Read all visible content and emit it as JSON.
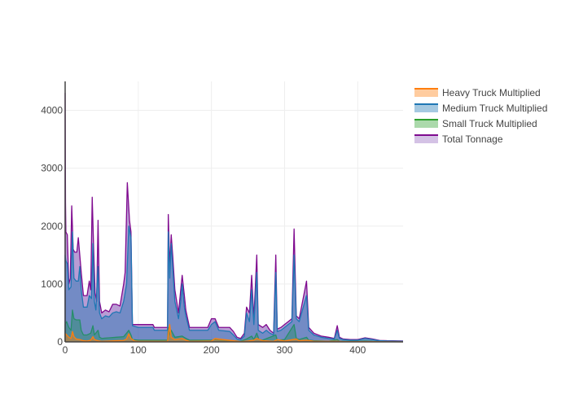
{
  "chart_data": {
    "type": "area",
    "title": "",
    "xlabel": "",
    "ylabel": "",
    "xlim": [
      0,
      462
    ],
    "ylim": [
      0,
      4500
    ],
    "x_ticks": [
      0,
      100,
      200,
      300,
      400
    ],
    "y_ticks": [
      0,
      1000,
      2000,
      3000,
      4000
    ],
    "grid": true,
    "legend_position": "top-right",
    "series": [
      {
        "name": "Heavy Truck Multiplied",
        "color": "#ff7f0e",
        "points": [
          [
            0,
            0
          ],
          [
            0,
            150
          ],
          [
            2,
            120
          ],
          [
            5,
            80
          ],
          [
            8,
            60
          ],
          [
            10,
            180
          ],
          [
            12,
            90
          ],
          [
            15,
            50
          ],
          [
            20,
            40
          ],
          [
            25,
            20
          ],
          [
            30,
            15
          ],
          [
            35,
            30
          ],
          [
            38,
            90
          ],
          [
            40,
            40
          ],
          [
            45,
            20
          ],
          [
            50,
            10
          ],
          [
            60,
            15
          ],
          [
            70,
            20
          ],
          [
            80,
            25
          ],
          [
            84,
            50
          ],
          [
            87,
            140
          ],
          [
            90,
            60
          ],
          [
            95,
            15
          ],
          [
            100,
            10
          ],
          [
            140,
            10
          ],
          [
            141,
            150
          ],
          [
            143,
            300
          ],
          [
            145,
            80
          ],
          [
            150,
            40
          ],
          [
            160,
            60
          ],
          [
            165,
            30
          ],
          [
            170,
            10
          ],
          [
            200,
            15
          ],
          [
            205,
            60
          ],
          [
            210,
            50
          ],
          [
            230,
            20
          ],
          [
            240,
            5
          ],
          [
            250,
            15
          ],
          [
            258,
            30
          ],
          [
            262,
            60
          ],
          [
            270,
            20
          ],
          [
            285,
            10
          ],
          [
            290,
            40
          ],
          [
            300,
            15
          ],
          [
            316,
            50
          ],
          [
            320,
            20
          ],
          [
            330,
            30
          ],
          [
            340,
            10
          ],
          [
            372,
            10
          ],
          [
            380,
            5
          ],
          [
            400,
            5
          ],
          [
            420,
            5
          ],
          [
            462,
            0
          ]
        ]
      },
      {
        "name": "Medium Truck Multiplied",
        "color": "#1f77b4",
        "points": [
          [
            0,
            0
          ],
          [
            0,
            1500
          ],
          [
            1,
            1400
          ],
          [
            3,
            1350
          ],
          [
            5,
            900
          ],
          [
            8,
            950
          ],
          [
            10,
            1900
          ],
          [
            12,
            1100
          ],
          [
            15,
            1050
          ],
          [
            18,
            1050
          ],
          [
            20,
            1300
          ],
          [
            22,
            900
          ],
          [
            25,
            600
          ],
          [
            30,
            600
          ],
          [
            33,
            800
          ],
          [
            36,
            750
          ],
          [
            38,
            1700
          ],
          [
            40,
            700
          ],
          [
            42,
            550
          ],
          [
            45,
            1300
          ],
          [
            47,
            500
          ],
          [
            50,
            400
          ],
          [
            55,
            450
          ],
          [
            60,
            430
          ],
          [
            65,
            500
          ],
          [
            70,
            520
          ],
          [
            75,
            500
          ],
          [
            80,
            700
          ],
          [
            84,
            1000
          ],
          [
            87,
            2000
          ],
          [
            90,
            1800
          ],
          [
            92,
            280
          ],
          [
            100,
            250
          ],
          [
            120,
            250
          ],
          [
            122,
            200
          ],
          [
            140,
            200
          ],
          [
            141,
            1900
          ],
          [
            143,
            1100
          ],
          [
            145,
            1700
          ],
          [
            147,
            1300
          ],
          [
            150,
            700
          ],
          [
            155,
            400
          ],
          [
            158,
            700
          ],
          [
            160,
            1000
          ],
          [
            163,
            600
          ],
          [
            165,
            450
          ],
          [
            170,
            200
          ],
          [
            195,
            200
          ],
          [
            200,
            300
          ],
          [
            205,
            350
          ],
          [
            210,
            200
          ],
          [
            225,
            180
          ],
          [
            230,
            120
          ],
          [
            235,
            50
          ],
          [
            240,
            40
          ],
          [
            245,
            100
          ],
          [
            248,
            500
          ],
          [
            252,
            350
          ],
          [
            255,
            900
          ],
          [
            258,
            300
          ],
          [
            262,
            1200
          ],
          [
            264,
            200
          ],
          [
            270,
            150
          ],
          [
            275,
            200
          ],
          [
            280,
            150
          ],
          [
            285,
            120
          ],
          [
            288,
            1200
          ],
          [
            290,
            180
          ],
          [
            295,
            200
          ],
          [
            300,
            250
          ],
          [
            305,
            300
          ],
          [
            310,
            350
          ],
          [
            313,
            1500
          ],
          [
            316,
            400
          ],
          [
            320,
            350
          ],
          [
            330,
            800
          ],
          [
            333,
            200
          ],
          [
            340,
            120
          ],
          [
            350,
            80
          ],
          [
            360,
            60
          ],
          [
            368,
            50
          ],
          [
            372,
            200
          ],
          [
            375,
            60
          ],
          [
            380,
            40
          ],
          [
            390,
            30
          ],
          [
            400,
            30
          ],
          [
            410,
            60
          ],
          [
            420,
            40
          ],
          [
            430,
            20
          ],
          [
            440,
            15
          ],
          [
            462,
            10
          ]
        ]
      },
      {
        "name": "Small Truck Multiplied",
        "color": "#2ca02c",
        "points": [
          [
            0,
            0
          ],
          [
            0,
            300
          ],
          [
            2,
            350
          ],
          [
            5,
            250
          ],
          [
            8,
            200
          ],
          [
            10,
            550
          ],
          [
            12,
            400
          ],
          [
            15,
            380
          ],
          [
            20,
            380
          ],
          [
            22,
            200
          ],
          [
            25,
            120
          ],
          [
            30,
            120
          ],
          [
            35,
            150
          ],
          [
            38,
            280
          ],
          [
            40,
            120
          ],
          [
            45,
            200
          ],
          [
            47,
            80
          ],
          [
            50,
            60
          ],
          [
            60,
            70
          ],
          [
            70,
            80
          ],
          [
            80,
            90
          ],
          [
            84,
            150
          ],
          [
            87,
            200
          ],
          [
            90,
            120
          ],
          [
            92,
            40
          ],
          [
            100,
            30
          ],
          [
            140,
            30
          ],
          [
            141,
            250
          ],
          [
            143,
            120
          ],
          [
            145,
            200
          ],
          [
            150,
            80
          ],
          [
            160,
            100
          ],
          [
            165,
            60
          ],
          [
            170,
            30
          ],
          [
            200,
            30
          ],
          [
            205,
            40
          ],
          [
            210,
            30
          ],
          [
            230,
            20
          ],
          [
            240,
            10
          ],
          [
            248,
            50
          ],
          [
            255,
            100
          ],
          [
            258,
            40
          ],
          [
            262,
            150
          ],
          [
            265,
            40
          ],
          [
            270,
            30
          ],
          [
            288,
            120
          ],
          [
            290,
            30
          ],
          [
            300,
            40
          ],
          [
            313,
            300
          ],
          [
            316,
            60
          ],
          [
            320,
            40
          ],
          [
            330,
            80
          ],
          [
            333,
            30
          ],
          [
            340,
            20
          ],
          [
            360,
            10
          ],
          [
            372,
            40
          ],
          [
            375,
            10
          ],
          [
            400,
            10
          ],
          [
            410,
            15
          ],
          [
            420,
            10
          ],
          [
            462,
            5
          ]
        ]
      },
      {
        "name": "Total Tonnage",
        "color": "#9467bd",
        "line_color": "#7f0a8f",
        "points": [
          [
            0,
            0
          ],
          [
            0,
            4300
          ],
          [
            0.5,
            2400
          ],
          [
            1,
            1900
          ],
          [
            3,
            1850
          ],
          [
            5,
            1000
          ],
          [
            7,
            1100
          ],
          [
            9,
            2350
          ],
          [
            11,
            1600
          ],
          [
            13,
            1550
          ],
          [
            16,
            1550
          ],
          [
            18,
            1800
          ],
          [
            20,
            1500
          ],
          [
            22,
            1200
          ],
          [
            25,
            800
          ],
          [
            30,
            800
          ],
          [
            33,
            1050
          ],
          [
            35,
            900
          ],
          [
            37,
            2500
          ],
          [
            39,
            1600
          ],
          [
            41,
            850
          ],
          [
            43,
            700
          ],
          [
            45,
            2100
          ],
          [
            47,
            700
          ],
          [
            50,
            500
          ],
          [
            55,
            550
          ],
          [
            60,
            520
          ],
          [
            65,
            650
          ],
          [
            70,
            650
          ],
          [
            75,
            620
          ],
          [
            80,
            1000
          ],
          [
            82,
            1200
          ],
          [
            85,
            2750
          ],
          [
            88,
            2100
          ],
          [
            90,
            1900
          ],
          [
            92,
            300
          ],
          [
            100,
            300
          ],
          [
            120,
            300
          ],
          [
            122,
            250
          ],
          [
            140,
            250
          ],
          [
            141,
            2200
          ],
          [
            143,
            1300
          ],
          [
            145,
            1850
          ],
          [
            147,
            1500
          ],
          [
            150,
            900
          ],
          [
            155,
            500
          ],
          [
            158,
            900
          ],
          [
            160,
            1150
          ],
          [
            163,
            800
          ],
          [
            165,
            550
          ],
          [
            170,
            250
          ],
          [
            195,
            250
          ],
          [
            200,
            400
          ],
          [
            205,
            400
          ],
          [
            210,
            250
          ],
          [
            225,
            250
          ],
          [
            230,
            180
          ],
          [
            235,
            80
          ],
          [
            240,
            60
          ],
          [
            245,
            150
          ],
          [
            248,
            600
          ],
          [
            252,
            500
          ],
          [
            255,
            1150
          ],
          [
            258,
            400
          ],
          [
            262,
            1500
          ],
          [
            264,
            300
          ],
          [
            270,
            250
          ],
          [
            275,
            300
          ],
          [
            280,
            200
          ],
          [
            285,
            150
          ],
          [
            288,
            1500
          ],
          [
            290,
            220
          ],
          [
            295,
            250
          ],
          [
            300,
            300
          ],
          [
            305,
            350
          ],
          [
            310,
            400
          ],
          [
            313,
            1950
          ],
          [
            316,
            450
          ],
          [
            320,
            400
          ],
          [
            330,
            1050
          ],
          [
            333,
            250
          ],
          [
            340,
            150
          ],
          [
            350,
            100
          ],
          [
            360,
            80
          ],
          [
            368,
            60
          ],
          [
            372,
            280
          ],
          [
            375,
            80
          ],
          [
            380,
            50
          ],
          [
            390,
            40
          ],
          [
            400,
            40
          ],
          [
            410,
            70
          ],
          [
            420,
            50
          ],
          [
            430,
            25
          ],
          [
            440,
            20
          ],
          [
            462,
            15
          ]
        ]
      }
    ]
  }
}
